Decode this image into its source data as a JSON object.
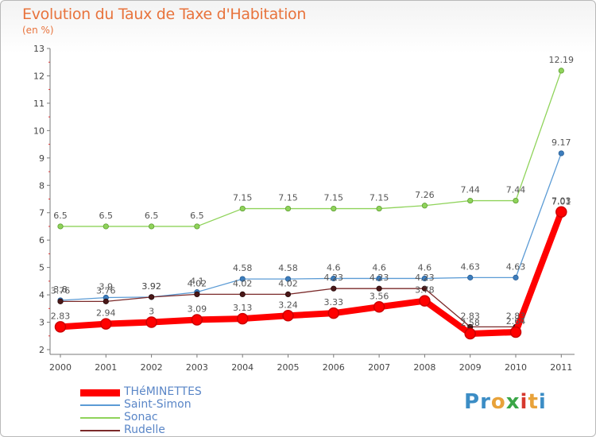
{
  "title": "Evolution du Taux de Taxe d'Habitation",
  "subtitle": "(en %)",
  "logo": {
    "text": "Proxiti",
    "letters": [
      "P",
      "r",
      "o",
      "x",
      "i",
      "t",
      "i"
    ],
    "colors": [
      "#3c8dc5",
      "#3c8dc5",
      "#e8a23a",
      "#3aa647",
      "#d6392f",
      "#e8a23a",
      "#3c8dc5"
    ]
  },
  "chart_data": {
    "type": "line",
    "title": "Evolution du Taux de Taxe d'Habitation",
    "ylabel": "(en %)",
    "xlabel": "",
    "ylim": [
      2,
      13
    ],
    "yticks": [
      2,
      3,
      4,
      5,
      6,
      7,
      8,
      9,
      10,
      11,
      12,
      13
    ],
    "x": [
      "2000",
      "2001",
      "2002",
      "2003",
      "2004",
      "2005",
      "2006",
      "2007",
      "2008",
      "2009",
      "2010",
      "2011"
    ],
    "grid": false,
    "legend_position": "bottom-left",
    "series": [
      {
        "name": "THéMINETTES",
        "color": "#ff0000",
        "values": [
          2.83,
          2.94,
          3,
          3.09,
          3.13,
          3.24,
          3.33,
          3.56,
          3.78,
          2.58,
          2.64,
          7.03
        ],
        "labels": [
          "2.83",
          "2.94",
          "3",
          "3.09",
          "3.13",
          "3.24",
          "3.33",
          "3.56",
          "3.78",
          "2.58",
          "2.64",
          "7.03"
        ]
      },
      {
        "name": "Saint-Simon",
        "color": "#5b9bd5",
        "values": [
          3.8,
          3.9,
          3.92,
          4.1,
          4.58,
          4.58,
          4.6,
          4.6,
          4.6,
          4.63,
          4.63,
          9.17
        ],
        "labels": [
          "3.8",
          "3.9",
          "3.92",
          "4.1",
          "4.58",
          "4.58",
          "4.6",
          "4.6",
          "4.6",
          "4.63",
          "4.63",
          "9.17"
        ]
      },
      {
        "name": "Sonac",
        "color": "#8fd35a",
        "values": [
          6.5,
          6.5,
          6.5,
          6.5,
          7.15,
          7.15,
          7.15,
          7.15,
          7.26,
          7.44,
          7.44,
          12.19
        ],
        "labels": [
          "6.5",
          "6.5",
          "6.5",
          "6.5",
          "7.15",
          "7.15",
          "7.15",
          "7.15",
          "7.26",
          "7.44",
          "7.44",
          "12.19"
        ]
      },
      {
        "name": "Rudelle",
        "color": "#7b2a2a",
        "values": [
          3.76,
          3.76,
          3.92,
          4.02,
          4.02,
          4.02,
          4.23,
          4.23,
          4.23,
          2.83,
          2.83,
          7.01
        ],
        "labels": [
          "3.76",
          "3.76",
          "3.92",
          "4.02",
          "4.02",
          "4.02",
          "4.23",
          "4.23",
          "4.23",
          "2.83",
          "2.83",
          "7.01"
        ]
      }
    ]
  }
}
